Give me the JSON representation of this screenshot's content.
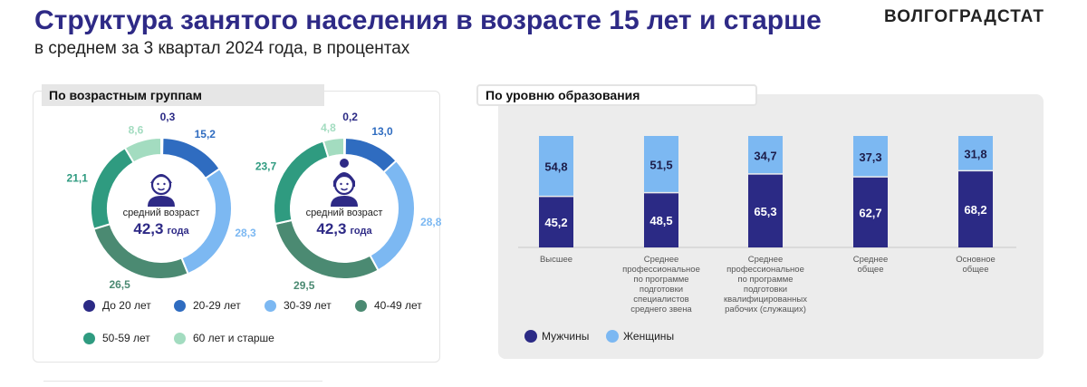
{
  "header": {
    "title": "Структура занятого населения в возрасте 15 лет и старше",
    "subtitle": "в среднем за 3 квартал 2024 года, в процентах",
    "brand": "ВОЛГОГРАДСТАТ"
  },
  "tabs": {
    "left": "По возрастным группам",
    "right": "По уровню образования"
  },
  "donut_center": {
    "caption": "средний возраст"
  },
  "colors": {
    "title": "#2e2a86",
    "under20": "#2b2a85",
    "age20_29": "#2f6cc0",
    "age30_39": "#7cb8f2",
    "age40_49": "#4b8a72",
    "age50_59": "#2f9b80",
    "age60plus": "#a3dcc0",
    "men": "#2b2a85",
    "women": "#7cb8f2"
  },
  "chart_data": [
    {
      "type": "pie",
      "icon": "man-icon",
      "center_value": "42,3",
      "center_unit": "года",
      "categories": [
        "До 20 лет",
        "20-29 лет",
        "30-39 лет",
        "40-49 лет",
        "50-59 лет",
        "60 лет и старше"
      ],
      "values": [
        0.3,
        15.2,
        28.3,
        26.5,
        21.1,
        8.6
      ],
      "labels": [
        "0,3",
        "15,2",
        "28,3",
        "26,5",
        "21,1",
        "8,6"
      ],
      "legend": "bottom"
    },
    {
      "type": "pie",
      "icon": "woman-icon",
      "center_value": "42,3",
      "center_unit": "года",
      "categories": [
        "До 20 лет",
        "20-29 лет",
        "30-39 лет",
        "40-49 лет",
        "50-59 лет",
        "60 лет и старше"
      ],
      "values": [
        0.2,
        13.0,
        28.8,
        29.5,
        23.7,
        4.8
      ],
      "labels": [
        "0,2",
        "13,0",
        "28,8",
        "29,5",
        "23,7",
        "4,8"
      ],
      "legend": "bottom"
    },
    {
      "type": "bar",
      "stacked": true,
      "categories": [
        "Высшее",
        "Среднее профессиональное по программе подготовки специалистов среднего звена",
        "Среднее профессиональное по программе подготовки квалифицированных рабочих (служащих)",
        "Среднее общее",
        "Основное общее"
      ],
      "category_lines": [
        [
          "Высшее"
        ],
        [
          "Среднее",
          "профессиональное",
          "по программе",
          "подготовки",
          "специалистов",
          "среднего звена"
        ],
        [
          "Среднее",
          "профессиональное",
          "по программе",
          "подготовки",
          "квалифицированных",
          "рабочих (служащих)"
        ],
        [
          "Среднее",
          "общее"
        ],
        [
          "Основное",
          "общее"
        ]
      ],
      "series": [
        {
          "name": "Мужчины",
          "values": [
            45.2,
            48.5,
            65.3,
            62.7,
            68.2
          ],
          "labels": [
            "45,2",
            "48,5",
            "65,3",
            "62,7",
            "68,2"
          ]
        },
        {
          "name": "Женщины",
          "values": [
            54.8,
            51.5,
            34.7,
            37.3,
            31.8
          ],
          "labels": [
            "54,8",
            "51,5",
            "34,7",
            "37,3",
            "31,8"
          ]
        }
      ],
      "ylim": [
        0,
        100
      ],
      "legend": "bottom-left"
    }
  ]
}
